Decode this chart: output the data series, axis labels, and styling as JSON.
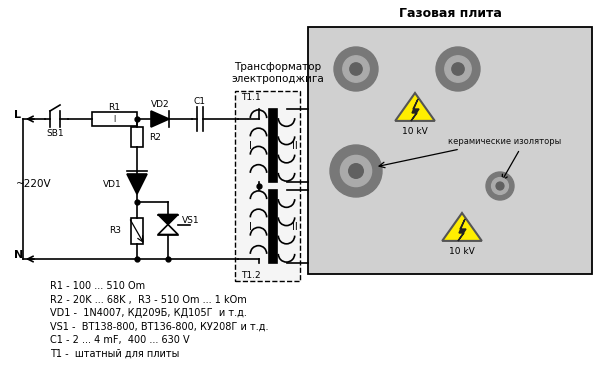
{
  "title_transformer": "Трансформатор\nэлектроподжига",
  "title_stove": "Газовая плита",
  "label_L": "L",
  "label_N": "N",
  "label_SB1": "SB1",
  "label_R1": "R1",
  "label_R2": "R2",
  "label_R3": "R3",
  "label_VD1": "VD1",
  "label_VD2": "VD2",
  "label_VS1": "VS1",
  "label_C1": "C1",
  "label_T11": "T1.1",
  "label_T12": "T1.2",
  "label_I": "I",
  "label_II": "II",
  "label_10kv": "10 kV",
  "label_ceramic": "керамические изоляторы",
  "label_voltage": "~220V",
  "description": [
    "R1 - 100 ... 510 Om",
    "R2 - 20K ... 68K ,  R3 - 510 Om ... 1 kOm",
    "VD1 -  1N4007, КД209Б, КД105Г  и т.д.",
    "VS1 -  ВТ138-800, ВТ136-800, КУ208Г и т.д.",
    "C1 - 2 ... 4 mF,  400 ... 630 V",
    "T1 -  штатный для плиты"
  ],
  "bg_color": "#ffffff",
  "line_color": "#000000",
  "stove_bg": "#d0d0d0",
  "warning_yellow": "#ffee00",
  "transformer_bg": "#f5f5f5"
}
